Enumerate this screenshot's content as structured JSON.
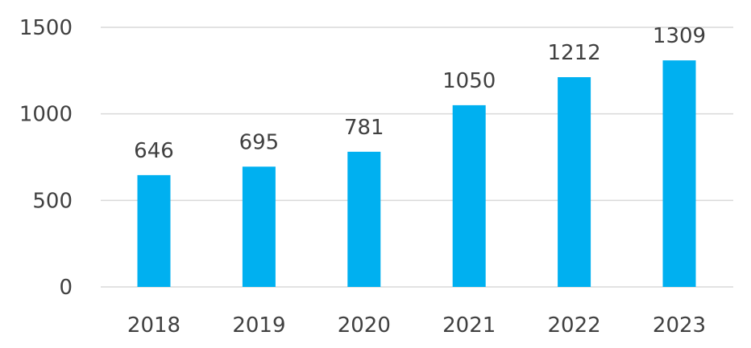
{
  "chart_data": {
    "type": "bar",
    "title": "",
    "xlabel": "",
    "ylabel": "",
    "categories": [
      "2018",
      "2019",
      "2020",
      "2021",
      "2022",
      "2023"
    ],
    "values": [
      646,
      695,
      781,
      1050,
      1212,
      1309
    ],
    "data_labels": [
      "646",
      "695",
      "781",
      "1050",
      "1212",
      "1309"
    ],
    "y_ticks": [
      0,
      500,
      1000,
      1500
    ],
    "y_tick_labels": [
      "0",
      "500",
      "1000",
      "1500"
    ],
    "ylim": [
      0,
      1500
    ],
    "grid": true,
    "legend": "none",
    "colors": {
      "bar": "#00B0F0",
      "grid": "#D9D9D9",
      "text": "#404040"
    }
  }
}
